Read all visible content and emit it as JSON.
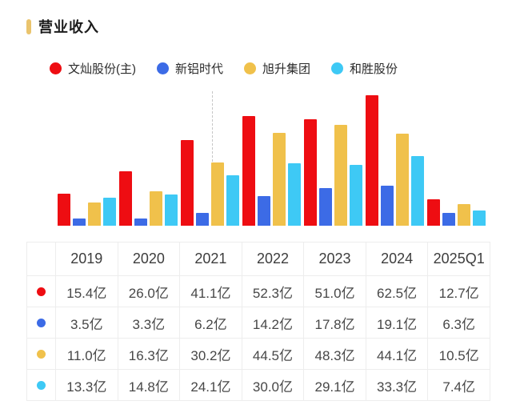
{
  "header": {
    "title": "营业收入",
    "marker_color": "#eac46d"
  },
  "legend": {
    "items": [
      {
        "label": "文灿股份(主)",
        "color": "#ee0d12"
      },
      {
        "label": "新铝时代",
        "color": "#3c6be6"
      },
      {
        "label": "旭升集团",
        "color": "#f0c14b"
      },
      {
        "label": "和胜股份",
        "color": "#3ec9f5"
      }
    ]
  },
  "chart_data": {
    "type": "bar",
    "title": "营业收入",
    "unit": "亿",
    "categories": [
      "2019",
      "2020",
      "2021",
      "2022",
      "2023",
      "2024",
      "2025Q1"
    ],
    "series": [
      {
        "name": "文灿股份(主)",
        "color": "#ee0d12",
        "values": [
          15.4,
          26.0,
          41.1,
          52.3,
          51.0,
          62.5,
          12.7
        ]
      },
      {
        "name": "新铝时代",
        "color": "#3c6be6",
        "values": [
          3.5,
          3.3,
          6.2,
          14.2,
          17.8,
          19.1,
          6.3
        ]
      },
      {
        "name": "旭升集团",
        "color": "#f0c14b",
        "values": [
          11.0,
          16.3,
          30.2,
          44.5,
          48.3,
          44.1,
          10.5
        ]
      },
      {
        "name": "和胜股份",
        "color": "#3ec9f5",
        "values": [
          13.3,
          14.8,
          24.1,
          30.0,
          29.1,
          33.3,
          7.4
        ]
      }
    ],
    "ylim": [
      0,
      65
    ],
    "grid": false,
    "legend_position": "top",
    "annotations": [
      {
        "type": "dashed-vertical-guide-line",
        "at_category": "2021",
        "color": "#c6c6c6"
      }
    ],
    "xlabel": "",
    "ylabel": ""
  },
  "table": {
    "columns": [
      "",
      "2019",
      "2020",
      "2021",
      "2022",
      "2023",
      "2024",
      "2025Q1"
    ],
    "rows": [
      {
        "series": "文灿股份(主)",
        "color": "#ee0d12",
        "values": [
          "15.4亿",
          "26.0亿",
          "41.1亿",
          "52.3亿",
          "51.0亿",
          "62.5亿",
          "12.7亿"
        ]
      },
      {
        "series": "新铝时代",
        "color": "#3c6be6",
        "values": [
          "3.5亿",
          "3.3亿",
          "6.2亿",
          "14.2亿",
          "17.8亿",
          "19.1亿",
          "6.3亿"
        ]
      },
      {
        "series": "旭升集团",
        "color": "#f0c14b",
        "values": [
          "11.0亿",
          "16.3亿",
          "30.2亿",
          "44.5亿",
          "48.3亿",
          "44.1亿",
          "10.5亿"
        ]
      },
      {
        "series": "和胜股份",
        "color": "#3ec9f5",
        "values": [
          "13.3亿",
          "14.8亿",
          "24.1亿",
          "30.0亿",
          "29.1亿",
          "33.3亿",
          "7.4亿"
        ]
      }
    ]
  }
}
